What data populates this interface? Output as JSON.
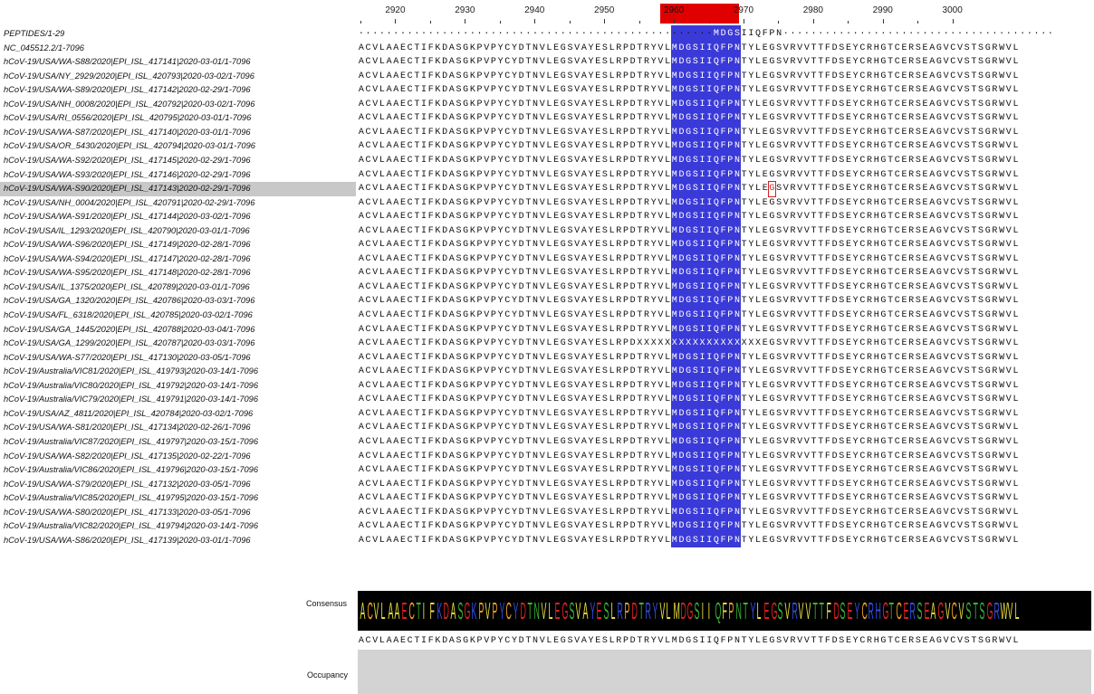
{
  "ruler": {
    "ticks": [
      "2920",
      "2930",
      "2940",
      "2950",
      "2960",
      "2970",
      "2980",
      "2990",
      "3000"
    ],
    "highlight_label": "2960"
  },
  "names": [
    "PEPTIDES/1-29",
    "NC_045512.2/1-7096",
    "hCoV-19/USA/WA-S88/2020|EPI_ISL_417141|2020-03-01/1-7096",
    "hCoV-19/USA/NY_2929/2020|EPI_ISL_420793|2020-03-02/1-7096",
    "hCoV-19/USA/WA-S89/2020|EPI_ISL_417142|2020-02-29/1-7096",
    "hCoV-19/USA/NH_0008/2020|EPI_ISL_420792|2020-03-02/1-7096",
    "hCoV-19/USA/RI_0556/2020|EPI_ISL_420795|2020-03-01/1-7096",
    "hCoV-19/USA/WA-S87/2020|EPI_ISL_417140|2020-03-01/1-7096",
    "hCoV-19/USA/OR_5430/2020|EPI_ISL_420794|2020-03-01/1-7096",
    "hCoV-19/USA/WA-S92/2020|EPI_ISL_417145|2020-02-29/1-7096",
    "hCoV-19/USA/WA-S93/2020|EPI_ISL_417146|2020-02-29/1-7096",
    "hCoV-19/USA/WA-S90/2020|EPI_ISL_417143|2020-02-29/1-7096",
    "hCoV-19/USA/NH_0004/2020|EPI_ISL_420791|2020-02-29/1-7096",
    "hCoV-19/USA/WA-S91/2020|EPI_ISL_417144|2020-03-02/1-7096",
    "hCoV-19/USA/IL_1293/2020|EPI_ISL_420790|2020-03-01/1-7096",
    "hCoV-19/USA/WA-S96/2020|EPI_ISL_417149|2020-02-28/1-7096",
    "hCoV-19/USA/WA-S94/2020|EPI_ISL_417147|2020-02-28/1-7096",
    "hCoV-19/USA/WA-S95/2020|EPI_ISL_417148|2020-02-28/1-7096",
    "hCoV-19/USA/IL_1375/2020|EPI_ISL_420789|2020-03-01/1-7096",
    "hCoV-19/USA/GA_1320/2020|EPI_ISL_420786|2020-03-03/1-7096",
    "hCoV-19/USA/FL_6318/2020|EPI_ISL_420785|2020-03-02/1-7096",
    "hCoV-19/USA/GA_1445/2020|EPI_ISL_420788|2020-03-04/1-7096",
    "hCoV-19/USA/GA_1299/2020|EPI_ISL_420787|2020-03-03/1-7096",
    "hCoV-19/USA/WA-S77/2020|EPI_ISL_417130|2020-03-05/1-7096",
    "hCoV-19/Australia/VIC81/2020|EPI_ISL_419793|2020-03-14/1-7096",
    "hCoV-19/Australia/VIC80/2020|EPI_ISL_419792|2020-03-14/1-7096",
    "hCoV-19/Australia/VIC79/2020|EPI_ISL_419791|2020-03-14/1-7096",
    "hCoV-19/USA/AZ_4811/2020|EPI_ISL_420784|2020-03-02/1-7096",
    "hCoV-19/USA/WA-S81/2020|EPI_ISL_417134|2020-02-26/1-7096",
    "hCoV-19/Australia/VIC87/2020|EPI_ISL_419797|2020-03-15/1-7096",
    "hCoV-19/USA/WA-S82/2020|EPI_ISL_417135|2020-02-22/1-7096",
    "hCoV-19/Australia/VIC86/2020|EPI_ISL_419796|2020-03-15/1-7096",
    "hCoV-19/USA/WA-S79/2020|EPI_ISL_417132|2020-03-05/1-7096",
    "hCoV-19/Australia/VIC85/2020|EPI_ISL_419795|2020-03-15/1-7096",
    "hCoV-19/USA/WA-S80/2020|EPI_ISL_417133|2020-03-05/1-7096",
    "hCoV-19/Australia/VIC82/2020|EPI_ISL_419794|2020-03-14/1-7096",
    "hCoV-19/USA/WA-S86/2020|EPI_ISL_417139|2020-03-01/1-7096"
  ],
  "selected_row": 11,
  "sequences": {
    "peptide": "---------------------------------------------------MDGSIIQFPN---------------------------------------",
    "reference": "ACVLAAECTIFKDASGKPVPYCYDTNVLEGSVAYESLRPDTRYVLMDGSIIQFPNTYLEGSVRVVTTFDSEYCRHGTCERSEAGVCVSTSGRWVL",
    "masked": "ACVLAAECTIFKDASGKPVPYCYDTNVLEGSVAYESLRPDXXXXXXXXXXXXXXXXXXEGSVRVVTTFDSEYCRHGTCERSEAGVCVSTSGRWVL",
    "masked_row": 22,
    "marked_row": 11,
    "marked_pos": 59
  },
  "consensus": {
    "label": "Consensus",
    "sequence": "ACVLAAECTIFKDASGKPVPYCYDTNVLEGSVAYESLRPDTRYVLMDGSIIQFPNTYLEGSVRVVTTFDSEYCRHGTCERSEAGVCVSTSGRWVL"
  },
  "occupancy": {
    "label": "Occupancy"
  },
  "colors": {
    "column_highlight": "#3a3ad8",
    "ruler_highlight": "#e00000",
    "selection": "#c8c8c8",
    "hydrophobic": "#e8e040",
    "polar": "#35b535",
    "acidic": "#e02020",
    "basic": "#3050e8",
    "special": "#f0a020",
    "other": "#ffffff"
  }
}
